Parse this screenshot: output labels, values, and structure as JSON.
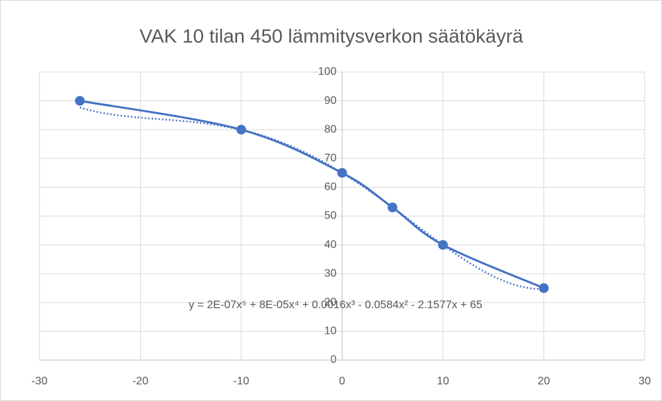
{
  "chart_data": {
    "type": "scatter",
    "title": "VAK 10 tilan 450 lämmitysverkon säätökäyrä",
    "x": [
      -26,
      -10,
      0,
      5,
      10,
      20
    ],
    "series": [
      {
        "color": "#4472c4",
        "values": [
          90,
          80,
          65,
          53,
          40,
          25
        ]
      }
    ],
    "smooth": true,
    "xlim": [
      -30,
      30
    ],
    "xticks": [
      -30,
      -20,
      -10,
      0,
      10,
      20,
      30
    ],
    "ylim": [
      0,
      100
    ],
    "yticks": [
      0,
      10,
      20,
      30,
      40,
      50,
      60,
      70,
      80,
      90,
      100
    ],
    "grid": true,
    "trendline": {
      "type": "polynomial",
      "style": "dotted",
      "coefficients": [
        65,
        -2.1577,
        -0.0584,
        0.0016,
        8e-05,
        2e-07
      ],
      "label": "y = 2E-07x⁵ + 8E-05x⁴ + 0.0016x³ - 0.0584x² - 2.1577x + 65"
    }
  }
}
